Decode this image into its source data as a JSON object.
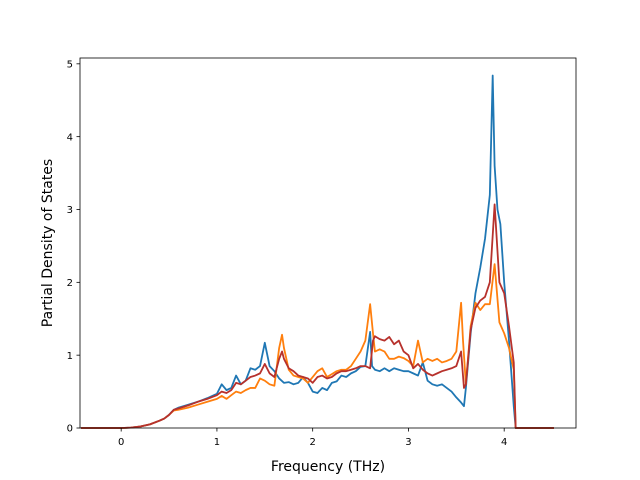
{
  "chart_data": {
    "type": "line",
    "title": "",
    "xlabel": "Frequency (THz)",
    "ylabel": "Partial Density of States",
    "xlim": [
      -0.43,
      4.75
    ],
    "ylim": [
      0,
      5.08
    ],
    "xticks": [
      0,
      1,
      2,
      3,
      4
    ],
    "yticks": [
      0,
      1,
      2,
      3,
      4,
      5
    ],
    "grid": false,
    "series": [
      {
        "color": "#1f77b4",
        "x": [
          -0.42,
          0.0,
          0.1,
          0.2,
          0.3,
          0.4,
          0.45,
          0.5,
          0.55,
          0.6,
          0.7,
          0.8,
          0.9,
          1.0,
          1.05,
          1.1,
          1.15,
          1.2,
          1.25,
          1.3,
          1.35,
          1.4,
          1.45,
          1.5,
          1.55,
          1.6,
          1.65,
          1.7,
          1.75,
          1.8,
          1.85,
          1.9,
          1.95,
          2.0,
          2.05,
          2.1,
          2.15,
          2.2,
          2.25,
          2.3,
          2.35,
          2.4,
          2.45,
          2.5,
          2.55,
          2.6,
          2.62,
          2.65,
          2.7,
          2.75,
          2.8,
          2.85,
          2.9,
          2.95,
          3.0,
          3.05,
          3.1,
          3.15,
          3.2,
          3.25,
          3.3,
          3.35,
          3.4,
          3.45,
          3.5,
          3.55,
          3.58,
          3.6,
          3.65,
          3.7,
          3.75,
          3.8,
          3.85,
          3.88,
          3.9,
          3.93,
          3.96,
          4.0,
          4.05,
          4.1,
          4.12,
          4.2,
          4.3,
          4.52
        ],
        "y": [
          0,
          0,
          0.005,
          0.02,
          0.05,
          0.1,
          0.13,
          0.18,
          0.25,
          0.28,
          0.32,
          0.36,
          0.41,
          0.47,
          0.6,
          0.52,
          0.55,
          0.72,
          0.6,
          0.65,
          0.82,
          0.8,
          0.85,
          1.17,
          0.85,
          0.78,
          0.68,
          0.62,
          0.63,
          0.6,
          0.62,
          0.7,
          0.62,
          0.5,
          0.48,
          0.55,
          0.52,
          0.62,
          0.64,
          0.72,
          0.7,
          0.75,
          0.78,
          0.84,
          0.85,
          1.32,
          0.85,
          0.8,
          0.78,
          0.82,
          0.78,
          0.82,
          0.8,
          0.78,
          0.78,
          0.75,
          0.72,
          0.9,
          0.65,
          0.6,
          0.58,
          0.6,
          0.55,
          0.5,
          0.42,
          0.35,
          0.3,
          0.55,
          1.3,
          1.85,
          2.2,
          2.6,
          3.2,
          4.84,
          3.6,
          3.0,
          2.8,
          2.0,
          1.2,
          0.3,
          0,
          0,
          0,
          0
        ]
      },
      {
        "color": "#ff7f0e",
        "x": [
          -0.42,
          0.0,
          0.1,
          0.2,
          0.3,
          0.4,
          0.45,
          0.5,
          0.55,
          0.6,
          0.7,
          0.8,
          0.9,
          1.0,
          1.05,
          1.1,
          1.15,
          1.2,
          1.25,
          1.3,
          1.35,
          1.4,
          1.45,
          1.5,
          1.55,
          1.6,
          1.65,
          1.68,
          1.7,
          1.75,
          1.8,
          1.85,
          1.9,
          1.95,
          2.0,
          2.05,
          2.1,
          2.15,
          2.2,
          2.25,
          2.3,
          2.35,
          2.4,
          2.45,
          2.5,
          2.55,
          2.6,
          2.63,
          2.65,
          2.7,
          2.75,
          2.8,
          2.85,
          2.9,
          2.95,
          3.0,
          3.05,
          3.1,
          3.15,
          3.2,
          3.25,
          3.3,
          3.35,
          3.4,
          3.45,
          3.5,
          3.55,
          3.57,
          3.6,
          3.65,
          3.7,
          3.75,
          3.8,
          3.85,
          3.9,
          3.95,
          4.0,
          4.05,
          4.1,
          4.12,
          4.2,
          4.3,
          4.52
        ],
        "y": [
          0,
          0,
          0.005,
          0.02,
          0.05,
          0.1,
          0.13,
          0.18,
          0.24,
          0.25,
          0.28,
          0.32,
          0.36,
          0.4,
          0.44,
          0.4,
          0.45,
          0.5,
          0.48,
          0.52,
          0.55,
          0.55,
          0.68,
          0.65,
          0.6,
          0.58,
          1.1,
          1.28,
          1.1,
          0.8,
          0.72,
          0.7,
          0.68,
          0.62,
          0.7,
          0.78,
          0.82,
          0.7,
          0.74,
          0.78,
          0.8,
          0.8,
          0.85,
          0.95,
          1.05,
          1.2,
          1.7,
          1.3,
          1.05,
          1.08,
          1.05,
          0.95,
          0.95,
          0.98,
          0.96,
          0.92,
          0.85,
          1.2,
          0.9,
          0.95,
          0.92,
          0.95,
          0.9,
          0.92,
          0.95,
          1.05,
          1.72,
          1.2,
          0.6,
          1.4,
          1.72,
          1.62,
          1.7,
          1.7,
          2.25,
          1.45,
          1.3,
          1.1,
          0.8,
          0,
          0,
          0,
          0
        ]
      },
      {
        "color": "#b7312c",
        "x": [
          -0.42,
          0.0,
          0.1,
          0.2,
          0.3,
          0.4,
          0.45,
          0.5,
          0.55,
          0.6,
          0.7,
          0.8,
          0.9,
          1.0,
          1.05,
          1.1,
          1.15,
          1.2,
          1.25,
          1.3,
          1.35,
          1.4,
          1.45,
          1.5,
          1.55,
          1.6,
          1.65,
          1.68,
          1.7,
          1.75,
          1.8,
          1.85,
          1.9,
          1.95,
          2.0,
          2.05,
          2.1,
          2.15,
          2.2,
          2.25,
          2.3,
          2.35,
          2.4,
          2.45,
          2.5,
          2.55,
          2.6,
          2.63,
          2.65,
          2.7,
          2.75,
          2.8,
          2.85,
          2.9,
          2.95,
          3.0,
          3.05,
          3.1,
          3.15,
          3.2,
          3.25,
          3.3,
          3.35,
          3.4,
          3.45,
          3.5,
          3.55,
          3.58,
          3.6,
          3.65,
          3.7,
          3.75,
          3.8,
          3.85,
          3.9,
          3.95,
          4.0,
          4.05,
          4.1,
          4.12,
          4.2,
          4.3,
          4.52
        ],
        "y": [
          0,
          0,
          0.005,
          0.02,
          0.05,
          0.1,
          0.13,
          0.18,
          0.25,
          0.27,
          0.31,
          0.36,
          0.4,
          0.45,
          0.5,
          0.48,
          0.52,
          0.62,
          0.6,
          0.65,
          0.7,
          0.72,
          0.75,
          0.88,
          0.75,
          0.7,
          0.95,
          1.05,
          0.95,
          0.82,
          0.78,
          0.72,
          0.7,
          0.68,
          0.62,
          0.7,
          0.72,
          0.68,
          0.7,
          0.75,
          0.78,
          0.78,
          0.8,
          0.82,
          0.85,
          0.85,
          0.82,
          1.2,
          1.26,
          1.22,
          1.2,
          1.25,
          1.15,
          1.2,
          1.05,
          1.0,
          0.82,
          0.88,
          0.8,
          0.75,
          0.72,
          0.75,
          0.78,
          0.8,
          0.82,
          0.85,
          1.05,
          0.55,
          0.6,
          1.35,
          1.65,
          1.75,
          1.8,
          2.0,
          3.07,
          2.0,
          1.85,
          1.4,
          0.9,
          0,
          0,
          0,
          0
        ]
      }
    ]
  }
}
